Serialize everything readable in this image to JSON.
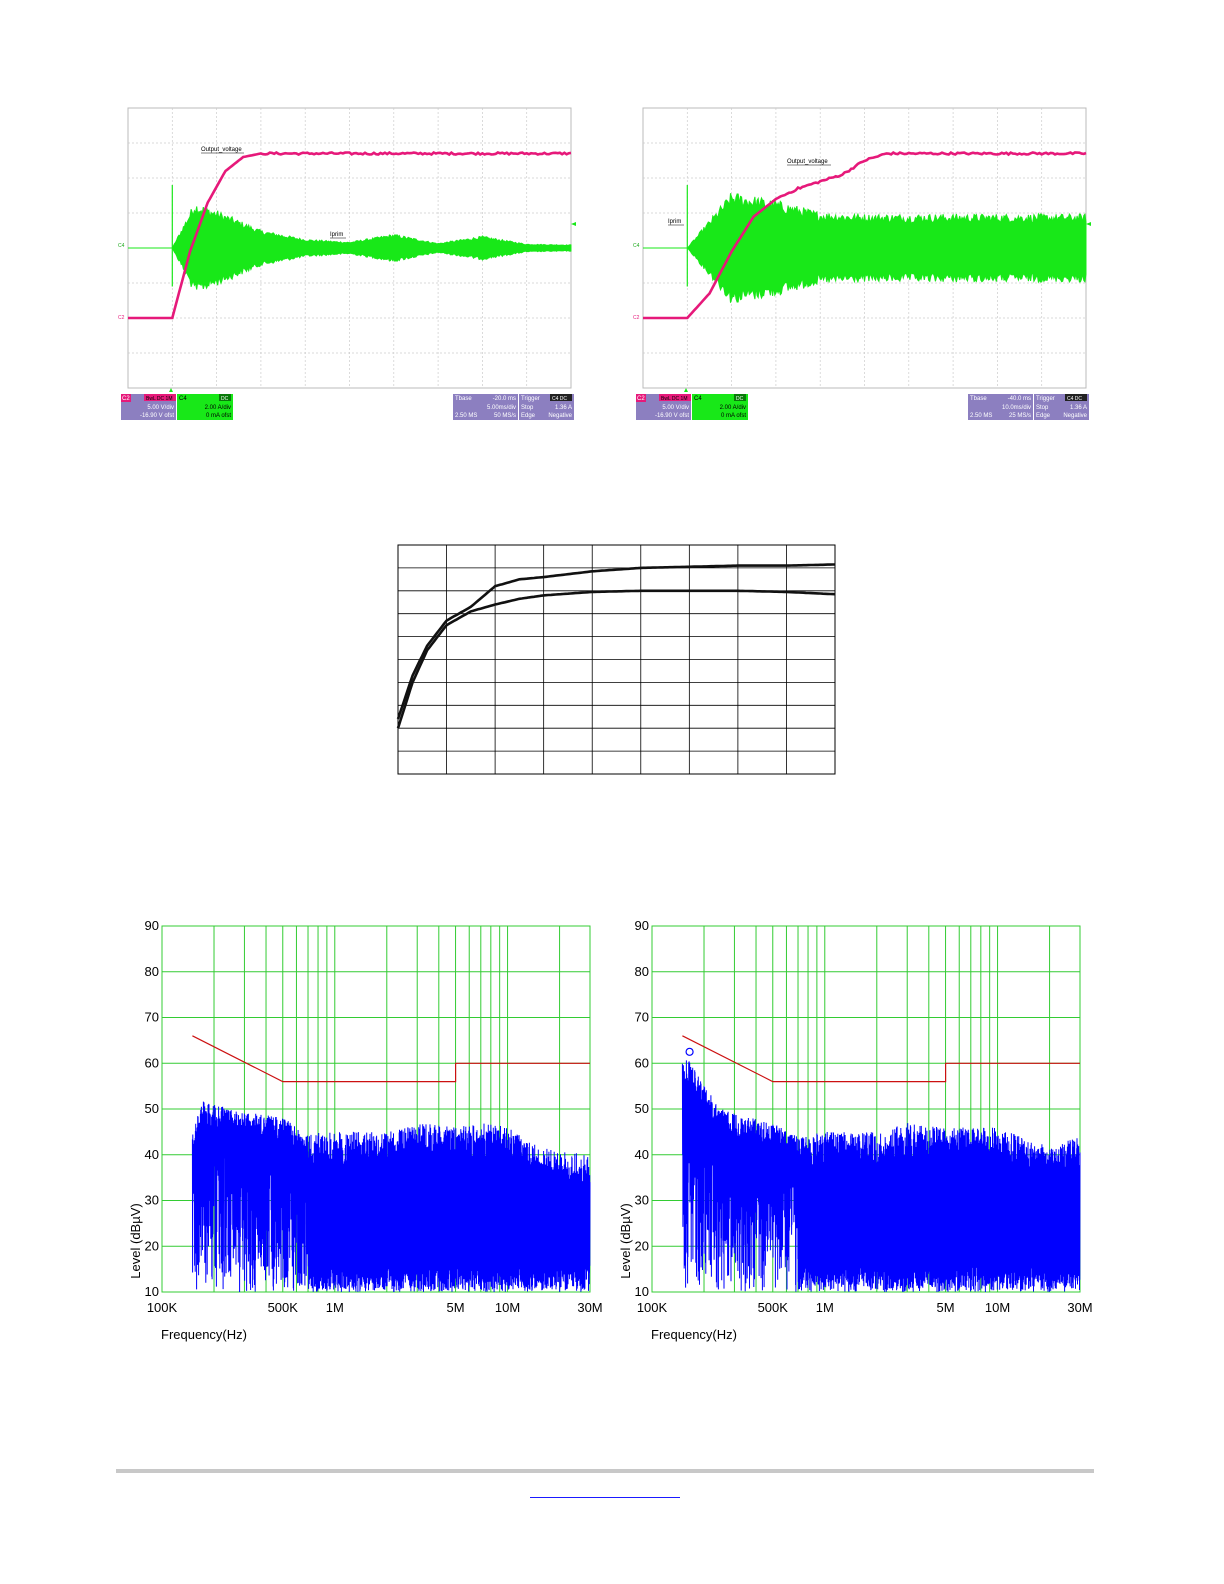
{
  "scopes": [
    {
      "id": "scope-left",
      "trace_labels": {
        "output": "Output_voltage",
        "current": "Iprim"
      },
      "ch_markers": {
        "current": "C4",
        "output": "C2"
      },
      "info": {
        "c2": {
          "name": "C2",
          "badge": "BwL DC 1M",
          "vdiv": "5.00 V/div",
          "offset": "-16.90 V ofst"
        },
        "c4": {
          "name": "C4",
          "badge": "DC",
          "adiv": "2.00 A/div",
          "offset": "0 mA ofst"
        },
        "tbase": {
          "label": "Tbase",
          "value": "-20.0 ms",
          "div": "5.00ms/div",
          "rate1": "2.50 MS",
          "rate2": "50 MS/s"
        },
        "trigger": {
          "label": "Trigger",
          "badge": "C4 DC",
          "mode": "Stop",
          "level": "1.36 A",
          "type": "Edge",
          "slope": "Negative"
        }
      }
    },
    {
      "id": "scope-right",
      "trace_labels": {
        "output": "Output_voltage",
        "current": "Iprim"
      },
      "ch_markers": {
        "current": "C4",
        "output": "C2"
      },
      "info": {
        "c2": {
          "name": "C2",
          "badge": "BwL DC 1M",
          "vdiv": "5.00 V/div",
          "offset": "-16.90 V ofst"
        },
        "c4": {
          "name": "C4",
          "badge": "DC",
          "adiv": "2.00 A/div",
          "offset": "0 mA ofst"
        },
        "tbase": {
          "label": "Tbase",
          "value": "-40.0 ms",
          "div": "10.0ms/div",
          "rate1": "2.50 MS",
          "rate2": "25 MS/s"
        },
        "trigger": {
          "label": "Trigger",
          "badge": "C4 DC",
          "mode": "Stop",
          "level": "1.36 A",
          "type": "Edge",
          "slope": "Negative"
        }
      }
    }
  ],
  "emi": [
    {
      "id": "emi-left",
      "ylabel": "Level (dBµV)",
      "xlabel": "Frequency(Hz)",
      "yticks": [
        "90",
        "80",
        "70",
        "60",
        "50",
        "40",
        "30",
        "20",
        "10"
      ],
      "xticks": [
        "100K",
        "500K",
        "1M",
        "5M",
        "10M",
        "30M"
      ],
      "marker": false
    },
    {
      "id": "emi-right",
      "ylabel": "Level (dBµV)",
      "xlabel": "Frequency(Hz)",
      "yticks": [
        "90",
        "80",
        "70",
        "60",
        "50",
        "40",
        "30",
        "20",
        "10"
      ],
      "xticks": [
        "100K",
        "500K",
        "1M",
        "5M",
        "10M",
        "30M"
      ],
      "marker": true
    }
  ],
  "colors": {
    "scope_pink": "#e6197a",
    "scope_green": "#18e818",
    "scope_info": "#8c7fc0",
    "emi_grid": "#33cc33",
    "emi_trace": "#0000ff",
    "emi_limit": "#cc1111"
  },
  "chart_data": [
    {
      "type": "line",
      "title": "",
      "chart": "scope-left",
      "xlabel": "",
      "ylabel": "",
      "xlim": [
        0,
        10
      ],
      "ylim": [
        0,
        8
      ],
      "grid": true,
      "series": [
        {
          "name": "Output_voltage",
          "x": [
            0,
            1,
            1.4,
            1.8,
            2.2,
            2.6,
            3,
            4,
            5,
            6,
            7,
            8,
            9,
            10
          ],
          "y": [
            2,
            2,
            3.9,
            5.3,
            6.2,
            6.6,
            6.7,
            6.7,
            6.7,
            6.7,
            6.7,
            6.7,
            6.7,
            6.7
          ]
        },
        {
          "name": "Iprim",
          "x": [
            0,
            1,
            1.5,
            2,
            2.5,
            3,
            4,
            5,
            6,
            7,
            8,
            9,
            10
          ],
          "y": [
            4,
            4,
            4,
            4,
            4,
            4,
            4,
            4,
            4,
            4,
            4,
            4,
            4
          ],
          "envelope": [
            0,
            0,
            1.15,
            0.95,
            0.7,
            0.45,
            0.22,
            0.15,
            0.35,
            0.12,
            0.3,
            0.1,
            0.08
          ]
        }
      ]
    },
    {
      "type": "line",
      "title": "",
      "chart": "scope-right",
      "xlabel": "",
      "ylabel": "",
      "xlim": [
        0,
        10
      ],
      "ylim": [
        0,
        8
      ],
      "grid": true,
      "series": [
        {
          "name": "Output_voltage",
          "x": [
            0,
            1,
            1.5,
            2,
            2.5,
            3,
            3.5,
            4,
            4.5,
            5,
            5.5,
            6,
            7,
            8,
            9,
            10
          ],
          "y": [
            2,
            2,
            2.7,
            3.9,
            4.9,
            5.4,
            5.7,
            5.9,
            6.1,
            6.5,
            6.7,
            6.7,
            6.7,
            6.7,
            6.7,
            6.7
          ]
        },
        {
          "name": "Iprim",
          "x": [
            0,
            1,
            2,
            3,
            4,
            5,
            6,
            7,
            8,
            9,
            10
          ],
          "y": [
            4,
            4,
            4,
            4,
            4,
            4,
            4,
            4,
            4,
            4,
            4
          ],
          "envelope": [
            0,
            0,
            1.4,
            1.2,
            0.9,
            0.85,
            0.85,
            0.85,
            0.85,
            0.85,
            0.85
          ]
        }
      ]
    },
    {
      "type": "line",
      "title": "",
      "chart": "efficiency-plot",
      "xlabel": "",
      "ylabel": "",
      "xlim": [
        0,
        9
      ],
      "ylim": [
        0,
        10
      ],
      "grid": true,
      "series": [
        {
          "x": [
            0,
            0.3,
            0.6,
            1,
            1.5,
            2,
            2.5,
            3,
            4,
            5,
            6,
            7,
            8,
            9
          ],
          "y": [
            2.4,
            4.3,
            5.6,
            6.7,
            7.3,
            8.2,
            8.5,
            8.6,
            8.85,
            9.0,
            9.05,
            9.1,
            9.1,
            9.15
          ]
        },
        {
          "x": [
            0,
            0.3,
            0.6,
            1,
            1.5,
            2,
            2.5,
            3,
            4,
            5,
            6,
            7,
            8,
            9
          ],
          "y": [
            2.0,
            4.0,
            5.4,
            6.5,
            7.1,
            7.4,
            7.65,
            7.8,
            7.95,
            8.0,
            8.0,
            8.0,
            7.95,
            7.85
          ]
        }
      ]
    },
    {
      "type": "line",
      "title": "",
      "chart": "emi-left",
      "xlabel": "Frequency(Hz)",
      "ylabel": "Level (dBµV)",
      "xscale": "log",
      "xlim": [
        100000,
        30000000
      ],
      "ylim": [
        10,
        90
      ],
      "grid": true,
      "series": [
        {
          "name": "limit",
          "x": [
            150000,
            500000,
            500000,
            5000000,
            5000000,
            30000000
          ],
          "y": [
            66,
            56,
            56,
            56,
            60,
            60
          ]
        },
        {
          "name": "measurement",
          "x": [
            150000,
            170000,
            200000,
            250000,
            300000,
            400000,
            500000,
            700000,
            1000000,
            2000000,
            3000000,
            5000000,
            7000000,
            10000000,
            15000000,
            20000000,
            30000000
          ],
          "y_peak": [
            45,
            52,
            51,
            50,
            49,
            49,
            48,
            45,
            45,
            45,
            47,
            46,
            47,
            46,
            42,
            41,
            40
          ],
          "y_floor": [
            10,
            10,
            10,
            10,
            10,
            10,
            10,
            10,
            10,
            10,
            10,
            10,
            10,
            10,
            10,
            10,
            10
          ]
        }
      ]
    },
    {
      "type": "line",
      "title": "",
      "chart": "emi-right",
      "xlabel": "Frequency(Hz)",
      "ylabel": "Level (dBµV)",
      "xscale": "log",
      "xlim": [
        100000,
        30000000
      ],
      "ylim": [
        10,
        90
      ],
      "grid": true,
      "series": [
        {
          "name": "limit",
          "x": [
            150000,
            500000,
            500000,
            5000000,
            5000000,
            30000000
          ],
          "y": [
            66,
            56,
            56,
            56,
            60,
            60
          ]
        },
        {
          "name": "measurement",
          "x": [
            150000,
            170000,
            200000,
            250000,
            300000,
            400000,
            500000,
            700000,
            1000000,
            2000000,
            3000000,
            5000000,
            7000000,
            10000000,
            15000000,
            20000000,
            30000000
          ],
          "y_peak": [
            62,
            60,
            55,
            50,
            49,
            48,
            47,
            44,
            45,
            45,
            47,
            46,
            46,
            46,
            43,
            42,
            44
          ],
          "y_floor": [
            10,
            10,
            10,
            10,
            10,
            10,
            10,
            10,
            10,
            10,
            10,
            10,
            10,
            10,
            10,
            10,
            10
          ]
        }
      ]
    }
  ]
}
